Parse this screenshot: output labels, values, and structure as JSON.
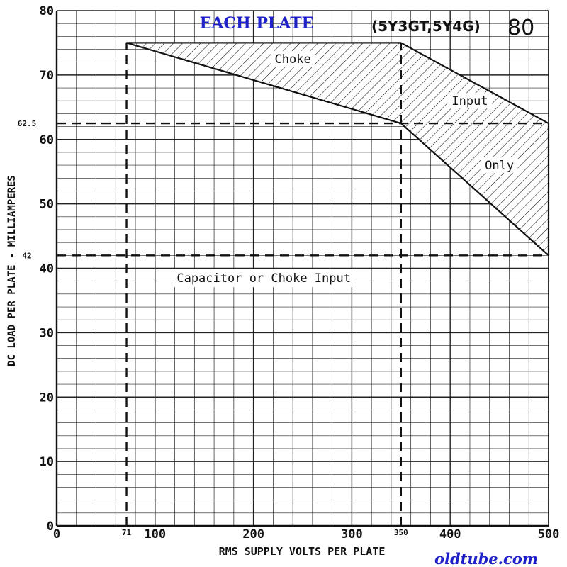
{
  "chart_data": {
    "type": "line",
    "title": "EACH PLATE",
    "tube_types": "(5Y3GT,5Y4G)",
    "tube_number": "80",
    "xlabel": "RMS SUPPLY VOLTS PER PLATE",
    "ylabel": "DC LOAD PER PLATE - MILLIAMPERES",
    "xlim": [
      0,
      500
    ],
    "ylim": [
      0,
      80
    ],
    "grid": true,
    "x_ticks": [
      {
        "value": 0,
        "label": "0"
      },
      {
        "value": 100,
        "label": "100"
      },
      {
        "value": 200,
        "label": "200"
      },
      {
        "value": 300,
        "label": "300"
      },
      {
        "value": 400,
        "label": "400"
      },
      {
        "value": 500,
        "label": "500"
      }
    ],
    "x_special_ticks": [
      {
        "value": 71,
        "label": "71"
      },
      {
        "value": 350,
        "label": "350"
      }
    ],
    "y_ticks": [
      {
        "value": 0,
        "label": "0"
      },
      {
        "value": 10,
        "label": "10"
      },
      {
        "value": 20,
        "label": "20"
      },
      {
        "value": 30,
        "label": "30"
      },
      {
        "value": 40,
        "label": "40"
      },
      {
        "value": 50,
        "label": "50"
      },
      {
        "value": 60,
        "label": "60"
      },
      {
        "value": 70,
        "label": "70"
      },
      {
        "value": 80,
        "label": "80"
      }
    ],
    "y_special_ticks": [
      {
        "value": 62.5,
        "label": "62.5"
      },
      {
        "value": 42,
        "label": "42"
      }
    ],
    "regions": [
      {
        "name": "capacitor-or-choke-input",
        "label": "Capacitor or Choke Input",
        "label_at": [
          71,
          350
        ],
        "label_y": 38.5,
        "boundary": [
          [
            71,
            0
          ],
          [
            71,
            75
          ],
          [
            350,
            75
          ],
          [
            350,
            0
          ]
        ]
      },
      {
        "name": "choke-input-only",
        "labels": [
          {
            "text": "Choke",
            "x": 240,
            "y": 72.5
          },
          {
            "text": "Input",
            "x": 420,
            "y": 66
          },
          {
            "text": "Only",
            "x": 450,
            "y": 56
          }
        ],
        "polygon": [
          [
            71,
            75
          ],
          [
            350,
            75
          ],
          [
            500,
            62.5
          ],
          [
            500,
            42
          ],
          [
            350,
            62.5
          ]
        ]
      }
    ],
    "dashed_lines": [
      {
        "from": [
          71,
          0
        ],
        "to": [
          71,
          75
        ]
      },
      {
        "from": [
          350,
          0
        ],
        "to": [
          350,
          75
        ]
      },
      {
        "from": [
          0,
          62.5
        ],
        "to": [
          500,
          62.5
        ]
      },
      {
        "from": [
          0,
          42
        ],
        "to": [
          500,
          42
        ]
      }
    ],
    "watermark": "oldtube.com",
    "colors": {
      "title": "#1e22c8",
      "ink": "#111111",
      "watermark": "#1e22c8"
    }
  }
}
